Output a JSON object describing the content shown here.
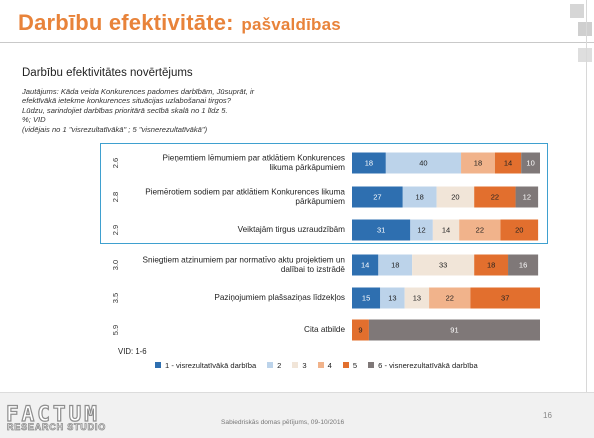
{
  "slide": {
    "title_main": "Darbību efektivitāte:",
    "title_sub": "pašvaldības",
    "section_title": "Darbību efektivitātes novērtējums",
    "question_lines": [
      "Jautājums: Kāda veida Konkurences padomes darbībām, Jūsuprāt, ir",
      "efektīvākā ietekme konkurences situācijas uzlabošanai tirgos?",
      "Lūdzu, sarindojiet darbības prioritārā secībā skalā no 1 līdz 5.",
      "%; VID",
      "(vidējais no 1 \"visrezultatīvākā\" ; 5 \"visnerezultatīvākā\")"
    ],
    "vid_note": "VID: 1-6",
    "footer_text": "Sabiedriskās domas pētījums, 09-10/2016",
    "page_number": "16",
    "logo_main": "FACTUM",
    "logo_sub": "RESEARCH STUDIO"
  },
  "colors": {
    "title": "#e8833a",
    "highlight": "#3fa0cf",
    "seg1": "#2e6fb0",
    "seg2": "#bcd3ea",
    "seg3": "#f1e5d8",
    "seg4": "#f1b38b",
    "seg5": "#e26f2e",
    "seg6": "#7f7878"
  },
  "chart_data": {
    "type": "bar",
    "orientation": "horizontal",
    "stacked": true,
    "xlim": [
      0,
      100
    ],
    "categories": [
      {
        "label_lines": [
          "Pieņemtiem lēmumiem par atklātiem Konkurences",
          "likuma pārkāpumiem"
        ],
        "avg": "2.6",
        "values": [
          18,
          40,
          0,
          18,
          14,
          10
        ],
        "shown": [
          18,
          40,
          null,
          18,
          14,
          10
        ]
      },
      {
        "label_lines": [
          "Piemērotiem sodiem par atklātiem Konkurences likuma",
          "pārkāpumiem"
        ],
        "avg": "2.8",
        "values": [
          27,
          18,
          20,
          0,
          22,
          12
        ],
        "shown": [
          27,
          18,
          20,
          null,
          22,
          12
        ]
      },
      {
        "label_lines": [
          "Veiktajām tirgus uzraudzībām"
        ],
        "avg": "2.9",
        "values": [
          31,
          12,
          14,
          22,
          20,
          0
        ],
        "shown": [
          31,
          12,
          14,
          22,
          20,
          null
        ]
      },
      {
        "label_lines": [
          "Sniegtiem atzinumiem par normatīvo aktu projektiem un",
          "dalībai to izstrādē"
        ],
        "avg": "3.0",
        "values": [
          14,
          18,
          33,
          0,
          18,
          16
        ],
        "shown": [
          14,
          18,
          33,
          null,
          18,
          16
        ]
      },
      {
        "label_lines": [
          "Paziņojumiem plašsaziņas līdzekļos"
        ],
        "avg": "3.5",
        "values": [
          15,
          13,
          13,
          22,
          37,
          0
        ],
        "shown": [
          15,
          13,
          13,
          22,
          37,
          null
        ]
      },
      {
        "label_lines": [
          "Cita atbilde"
        ],
        "avg": "5.9",
        "values": [
          0,
          0,
          0,
          0,
          9,
          91
        ],
        "shown": [
          null,
          null,
          null,
          null,
          9,
          91
        ]
      }
    ],
    "legend": [
      "1 - visrezultatīvākā darbība",
      "2",
      "3",
      "4",
      "5",
      "6 - visnerezultatīvākā darbība"
    ],
    "legend_position": "bottom"
  }
}
